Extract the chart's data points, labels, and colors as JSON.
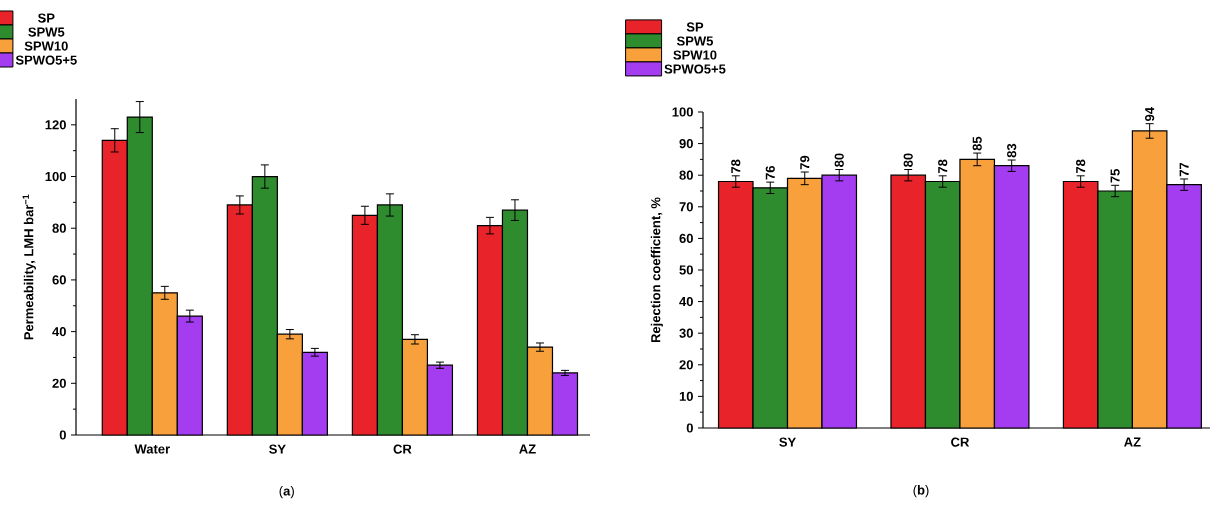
{
  "chart_data": [
    {
      "type": "bar",
      "ylabel": "Permeability, LMH bar$^{−1}$",
      "categories": [
        "Water",
        "SY",
        "CR",
        "AZ"
      ],
      "series": [
        {
          "name": "SP",
          "color": "#e8232a",
          "values": [
            114,
            89,
            85,
            81
          ],
          "errors": [
            4.5,
            3.5,
            3.5,
            3.2
          ]
        },
        {
          "name": "SPW5",
          "color": "#2e8b2e",
          "values": [
            123,
            100,
            89,
            87
          ],
          "errors": [
            6,
            4.5,
            4.3,
            4
          ]
        },
        {
          "name": "SPW10",
          "color": "#f7a03c",
          "values": [
            55,
            39,
            37,
            34
          ],
          "errors": [
            2.5,
            1.8,
            1.8,
            1.6
          ]
        },
        {
          "name": "SPWO5+5",
          "color": "#a43cf0",
          "values": [
            46,
            32,
            27,
            24
          ],
          "errors": [
            2.3,
            1.5,
            1.2,
            1
          ]
        }
      ],
      "ylim": [
        0,
        130
      ],
      "yticks": [
        0,
        20,
        40,
        60,
        80,
        100,
        120
      ],
      "legend": "top left",
      "grid": false,
      "annotations": [
        "(**a**)"
      ]
    },
    {
      "type": "bar",
      "ylabel": "Rejection coefficient, %",
      "categories": [
        "SY",
        "CR",
        "AZ"
      ],
      "series": [
        {
          "name": "SP",
          "color": "#e8232a",
          "values": [
            78,
            80,
            78
          ],
          "errors": [
            1.8,
            1.8,
            1.8
          ],
          "value_labels": [
            "78",
            "80",
            "78"
          ]
        },
        {
          "name": "SPW5",
          "color": "#2e8b2e",
          "values": [
            76,
            78,
            75
          ],
          "errors": [
            1.8,
            1.8,
            1.8
          ],
          "value_labels": [
            "76",
            "78",
            "75"
          ]
        },
        {
          "name": "SPW10",
          "color": "#f7a03c",
          "values": [
            79,
            85,
            94
          ],
          "errors": [
            2,
            2,
            2.3
          ],
          "value_labels": [
            "79",
            "85",
            "94"
          ]
        },
        {
          "name": "SPWO5+5",
          "color": "#a43cf0",
          "values": [
            80,
            83,
            77
          ],
          "errors": [
            1.8,
            1.8,
            1.8
          ],
          "value_labels": [
            "80",
            "83",
            "77"
          ]
        }
      ],
      "ylim": [
        0,
        100
      ],
      "yticks": [
        0,
        10,
        20,
        30,
        40,
        50,
        60,
        70,
        80,
        90,
        100
      ],
      "legend": "top left",
      "grid": false,
      "annotations": [
        "(**b**)"
      ]
    }
  ]
}
